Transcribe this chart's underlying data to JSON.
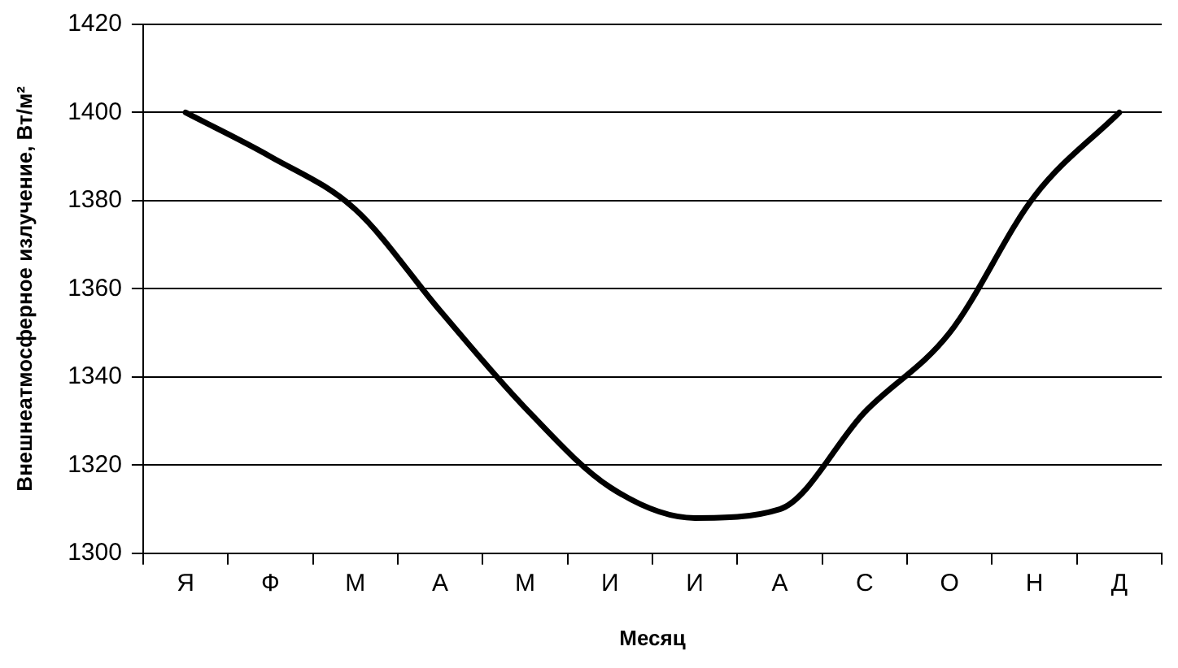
{
  "chart_data": {
    "type": "line",
    "xlabel": "Месяц",
    "ylabel": "Внешнеатмосферное излучение, Вт/м²",
    "categories": [
      "Я",
      "Ф",
      "М",
      "А",
      "М",
      "И",
      "И",
      "А",
      "С",
      "О",
      "Н",
      "Д"
    ],
    "series": [
      {
        "color": "#000000",
        "values": [
          1400,
          1390,
          1378,
          1355,
          1333,
          1315,
          1308,
          1310,
          1332,
          1350,
          1381,
          1400
        ]
      }
    ],
    "ylim": [
      1300,
      1420
    ],
    "yticks": [
      1300,
      1320,
      1340,
      1360,
      1380,
      1400,
      1420
    ],
    "grid": "y",
    "legend": false,
    "marker": "none",
    "line_style": "solid"
  }
}
